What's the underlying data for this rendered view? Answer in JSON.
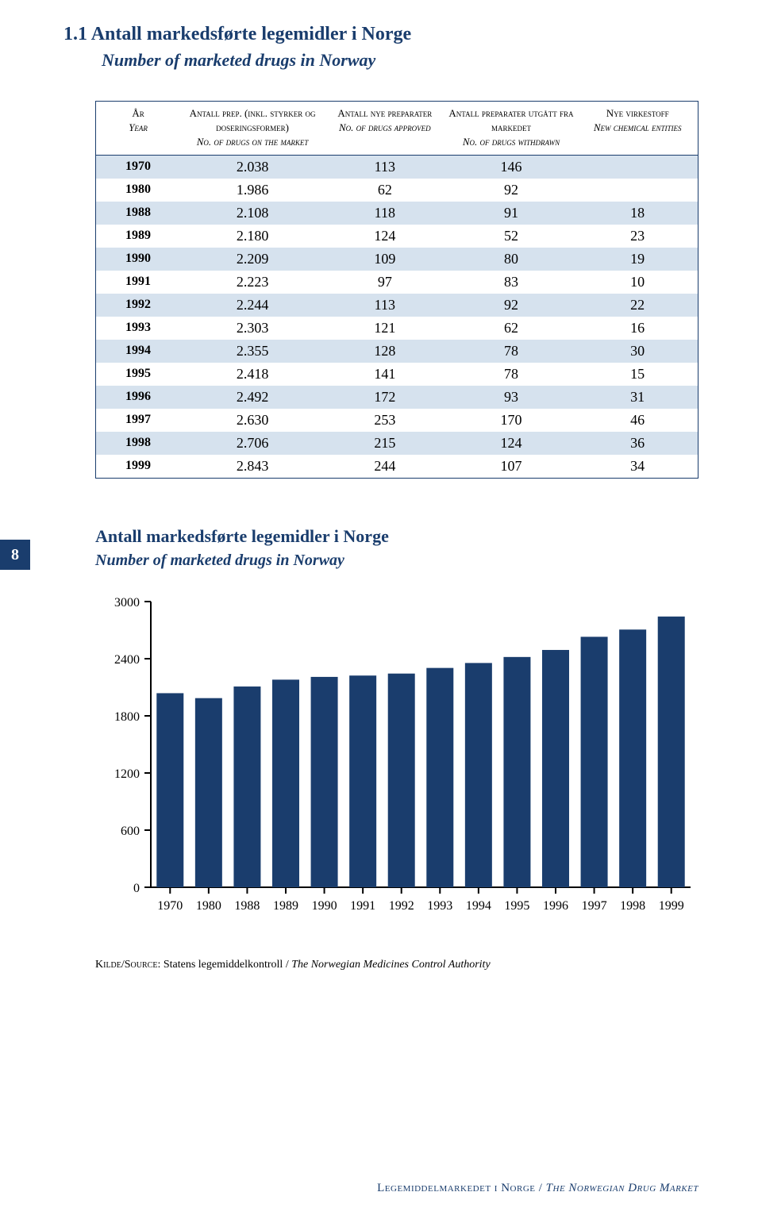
{
  "header": {
    "section_number": "1.1",
    "title_no": "Antall markedsførte legemidler i Norge",
    "title_en": "Number of marketed drugs in Norway"
  },
  "page_tab": "8",
  "table": {
    "columns": [
      {
        "header_no": "År",
        "header_en": "Year"
      },
      {
        "header_no": "Antall prep. (inkl. styrker og doseringsformer)",
        "header_en": "No. of drugs on the market"
      },
      {
        "header_no": "Antall nye preparater",
        "header_en": "No. of drugs approved"
      },
      {
        "header_no": "Antall preparater utgått fra markedet",
        "header_en": "No. of drugs withdrawn"
      },
      {
        "header_no": "Nye virkestoff",
        "header_en": "New chemical entities"
      }
    ],
    "rows": [
      {
        "year": "1970",
        "market": "2.038",
        "approved": "113",
        "withdrawn": "146",
        "nce": ""
      },
      {
        "year": "1980",
        "market": "1.986",
        "approved": "62",
        "withdrawn": "92",
        "nce": ""
      },
      {
        "year": "1988",
        "market": "2.108",
        "approved": "118",
        "withdrawn": "91",
        "nce": "18"
      },
      {
        "year": "1989",
        "market": "2.180",
        "approved": "124",
        "withdrawn": "52",
        "nce": "23"
      },
      {
        "year": "1990",
        "market": "2.209",
        "approved": "109",
        "withdrawn": "80",
        "nce": "19"
      },
      {
        "year": "1991",
        "market": "2.223",
        "approved": "97",
        "withdrawn": "83",
        "nce": "10"
      },
      {
        "year": "1992",
        "market": "2.244",
        "approved": "113",
        "withdrawn": "92",
        "nce": "22"
      },
      {
        "year": "1993",
        "market": "2.303",
        "approved": "121",
        "withdrawn": "62",
        "nce": "16"
      },
      {
        "year": "1994",
        "market": "2.355",
        "approved": "128",
        "withdrawn": "78",
        "nce": "30"
      },
      {
        "year": "1995",
        "market": "2.418",
        "approved": "141",
        "withdrawn": "78",
        "nce": "15"
      },
      {
        "year": "1996",
        "market": "2.492",
        "approved": "172",
        "withdrawn": "93",
        "nce": "31"
      },
      {
        "year": "1997",
        "market": "2.630",
        "approved": "253",
        "withdrawn": "170",
        "nce": "46"
      },
      {
        "year": "1998",
        "market": "2.706",
        "approved": "215",
        "withdrawn": "124",
        "nce": "36"
      },
      {
        "year": "1999",
        "market": "2.843",
        "approved": "244",
        "withdrawn": "107",
        "nce": "34"
      }
    ],
    "stripe_color": "#d6e2ee",
    "border_color": "#1a3d6d"
  },
  "chart": {
    "type": "bar",
    "title_no": "Antall markedsførte legemidler i Norge",
    "title_en": "Number of marketed drugs in Norway",
    "categories": [
      "1970",
      "1980",
      "1988",
      "1989",
      "1990",
      "1991",
      "1992",
      "1993",
      "1994",
      "1995",
      "1996",
      "1997",
      "1998",
      "1999"
    ],
    "values": [
      2038,
      1986,
      2108,
      2180,
      2209,
      2223,
      2244,
      2303,
      2355,
      2418,
      2492,
      2630,
      2706,
      2843
    ],
    "ylim": [
      0,
      3000
    ],
    "ytick_step": 600,
    "bar_color": "#1a3d6d",
    "axis_color": "#000000",
    "background_color": "#ffffff",
    "bar_width": 0.7,
    "label_fontsize": 16,
    "axis_stroke_width": 2,
    "tick_length": 8
  },
  "source": {
    "label": "Kilde/Source:",
    "text_no": "Statens legemiddelkontroll",
    "sep": " / ",
    "text_en": "The Norwegian Medicines Control Authority"
  },
  "footer": {
    "text_no": "Legemiddelmarkedet i Norge",
    "sep": " / ",
    "text_en": "The Norwegian Drug Market"
  }
}
